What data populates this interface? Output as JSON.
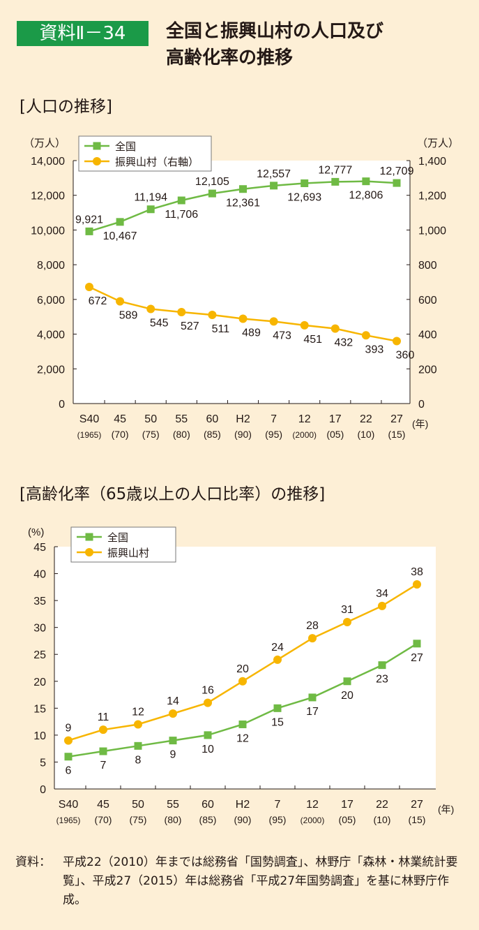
{
  "header": {
    "badge": "資料Ⅱ－34",
    "title_line1": "全国と振興山村の人口及び",
    "title_line2": "高齢化率の推移"
  },
  "colors": {
    "national": "#6fba44",
    "rural": "#f7b500",
    "badge": "#1b9a48",
    "background": "#fdefd6"
  },
  "footer": {
    "label": "資料：",
    "text": "平成22（2010）年までは総務省「国勢調査」、林野庁「森林・林業統計要覧」、平成27（2015）年は総務省「平成27年国勢調査」を基に林野庁作成。"
  },
  "chart_data": [
    {
      "type": "line",
      "title": "[人口の推移]",
      "categories": [
        "S40",
        "45",
        "50",
        "55",
        "60",
        "H2",
        "7",
        "12",
        "17",
        "22",
        "27"
      ],
      "categories_sub": [
        "(1965)",
        "(70)",
        "(75)",
        "(80)",
        "(85)",
        "(90)",
        "(95)",
        "(2000)",
        "(05)",
        "(10)",
        "(15)"
      ],
      "x_unit": "(年)",
      "ylabel": "（万人）",
      "ylabel_right": "（万人）",
      "ylim": [
        0,
        14000
      ],
      "yticks": [
        "0",
        "2,000",
        "4,000",
        "6,000",
        "8,000",
        "10,000",
        "12,000",
        "14,000"
      ],
      "ylim_right": [
        0,
        1400
      ],
      "yticks_right": [
        "0",
        "200",
        "400",
        "600",
        "800",
        "1,000",
        "1,200",
        "1,400"
      ],
      "legend_position": "top-left",
      "series": [
        {
          "name": "全国",
          "axis": "left",
          "marker": "square",
          "values": [
            9921,
            10467,
            11194,
            11706,
            12105,
            12361,
            12557,
            12693,
            12777,
            12806,
            12709
          ],
          "labels": [
            "9,921",
            "10,467",
            "11,194",
            "11,706",
            "12,105",
            "12,361",
            "12,557",
            "12,693",
            "12,777",
            "12,806",
            "12,709"
          ]
        },
        {
          "name": "振興山村（右軸）",
          "axis": "right",
          "marker": "circle",
          "values": [
            672,
            589,
            545,
            527,
            511,
            489,
            473,
            451,
            432,
            393,
            360
          ],
          "labels": [
            "672",
            "589",
            "545",
            "527",
            "511",
            "489",
            "473",
            "451",
            "432",
            "393",
            "360"
          ]
        }
      ]
    },
    {
      "type": "line",
      "title": "[高齢化率（65歳以上の人口比率）の推移]",
      "categories": [
        "S40",
        "45",
        "50",
        "55",
        "60",
        "H2",
        "7",
        "12",
        "17",
        "22",
        "27"
      ],
      "categories_sub": [
        "(1965)",
        "(70)",
        "(75)",
        "(80)",
        "(85)",
        "(90)",
        "(95)",
        "(2000)",
        "(05)",
        "(10)",
        "(15)"
      ],
      "x_unit": "(年)",
      "ylabel": "(%)",
      "ylim": [
        0,
        45
      ],
      "yticks": [
        "0",
        "5",
        "10",
        "15",
        "20",
        "25",
        "30",
        "35",
        "40",
        "45"
      ],
      "legend_position": "top-left",
      "series": [
        {
          "name": "全国",
          "marker": "square",
          "values": [
            6,
            7,
            8,
            9,
            10,
            12,
            15,
            17,
            20,
            23,
            27
          ],
          "labels": [
            "6",
            "7",
            "8",
            "9",
            "10",
            "12",
            "15",
            "17",
            "20",
            "23",
            "27"
          ]
        },
        {
          "name": "振興山村",
          "marker": "circle",
          "values": [
            9,
            11,
            12,
            14,
            16,
            20,
            24,
            28,
            31,
            34,
            38
          ],
          "labels": [
            "9",
            "11",
            "12",
            "14",
            "16",
            "20",
            "24",
            "28",
            "31",
            "34",
            "38"
          ]
        }
      ]
    }
  ]
}
